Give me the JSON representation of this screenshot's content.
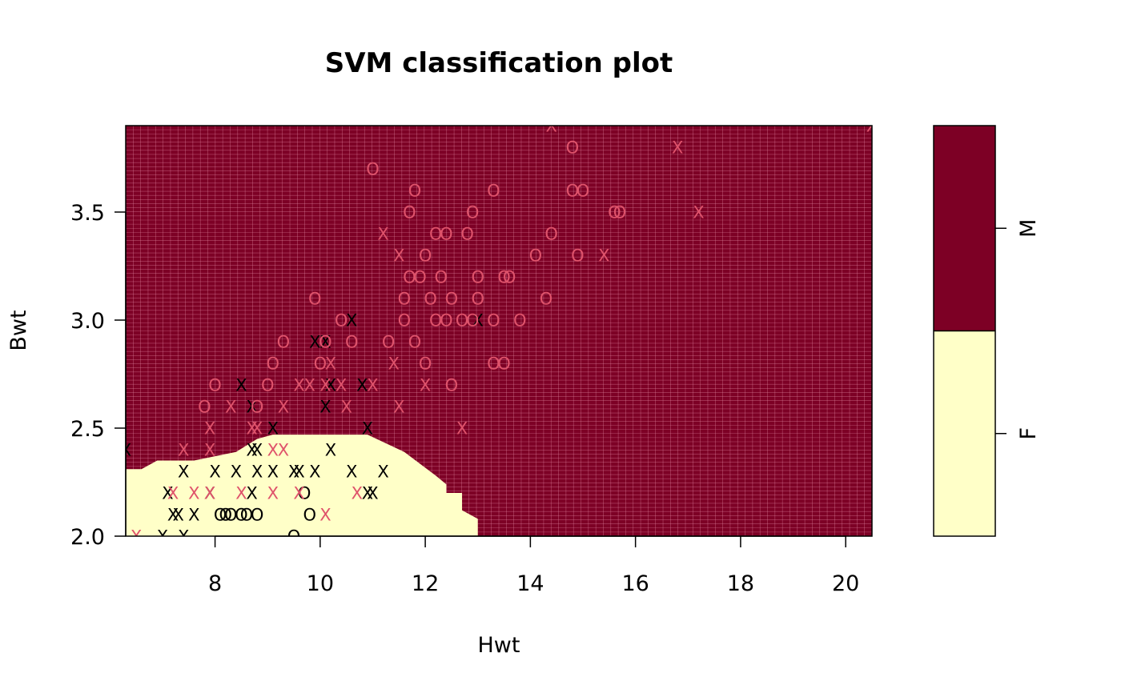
{
  "chart_data": {
    "type": "scatter",
    "title": "SVM classification plot",
    "xlabel": "Hwt",
    "ylabel": "Bwt",
    "xlim": [
      6.3,
      20.5
    ],
    "ylim": [
      2.0,
      3.9
    ],
    "xticks": [
      8,
      10,
      12,
      14,
      16,
      18,
      20
    ],
    "yticks": [
      2.0,
      2.5,
      3.0,
      3.5
    ],
    "xtick_labels": [
      "8",
      "10",
      "12",
      "14",
      "16",
      "18",
      "20"
    ],
    "ytick_labels": [
      "2.0",
      "2.5",
      "3.0",
      "3.5"
    ],
    "grid": true,
    "legend": {
      "position": "right",
      "type": "color-key",
      "classes": [
        {
          "label": "F",
          "color": "#FFFFC8"
        },
        {
          "label": "M",
          "color": "#7D0025"
        }
      ],
      "split": 0.5
    },
    "region_colors": {
      "F": "#FFFFC8",
      "M": "#7D0025",
      "grid": "#E48DA5"
    },
    "point_colors": {
      "F": "#000000",
      "M": "#DF536B"
    },
    "markers": {
      "support_vector": "X",
      "other": "O"
    },
    "decision_region_F": [
      [
        6.3,
        2.0
      ],
      [
        6.3,
        2.31
      ],
      [
        6.6,
        2.31
      ],
      [
        6.9,
        2.35
      ],
      [
        7.6,
        2.35
      ],
      [
        8.4,
        2.39
      ],
      [
        8.8,
        2.45
      ],
      [
        9.1,
        2.47
      ],
      [
        10.9,
        2.47
      ],
      [
        11.6,
        2.39
      ],
      [
        12.2,
        2.28
      ],
      [
        12.4,
        2.24
      ],
      [
        12.4,
        2.2
      ],
      [
        12.7,
        2.2
      ],
      [
        12.7,
        2.12
      ],
      [
        13.0,
        2.08
      ],
      [
        13.0,
        2.0
      ]
    ],
    "series": [
      {
        "name": "F",
        "marker": "X",
        "points": [
          [
            6.3,
            2.4
          ],
          [
            7.0,
            2.0
          ],
          [
            7.4,
            2.0
          ],
          [
            7.1,
            2.2
          ],
          [
            7.2,
            2.1
          ],
          [
            7.3,
            2.1
          ],
          [
            7.4,
            2.3
          ],
          [
            7.6,
            2.1
          ],
          [
            7.9,
            2.2
          ],
          [
            8.0,
            2.3
          ],
          [
            8.4,
            2.3
          ],
          [
            8.7,
            2.2
          ],
          [
            8.5,
            2.7
          ],
          [
            8.7,
            2.6
          ],
          [
            8.7,
            2.4
          ],
          [
            8.8,
            2.4
          ],
          [
            8.8,
            2.3
          ],
          [
            9.1,
            2.3
          ],
          [
            9.1,
            2.5
          ],
          [
            9.5,
            2.3
          ],
          [
            9.6,
            2.3
          ],
          [
            9.9,
            2.3
          ],
          [
            9.9,
            2.9
          ],
          [
            10.1,
            2.9
          ],
          [
            10.1,
            2.6
          ],
          [
            10.2,
            2.7
          ],
          [
            10.2,
            2.4
          ],
          [
            10.6,
            3.0
          ],
          [
            10.8,
            2.7
          ],
          [
            10.6,
            2.3
          ],
          [
            10.9,
            2.5
          ],
          [
            10.9,
            2.2
          ],
          [
            11.0,
            2.2
          ],
          [
            11.2,
            2.3
          ],
          [
            13.0,
            3.0
          ]
        ]
      },
      {
        "name": "F",
        "marker": "O",
        "points": [
          [
            8.1,
            2.1
          ],
          [
            8.2,
            2.1
          ],
          [
            8.3,
            2.1
          ],
          [
            8.5,
            2.1
          ],
          [
            8.6,
            2.1
          ],
          [
            8.8,
            2.1
          ],
          [
            9.8,
            2.1
          ],
          [
            9.7,
            2.2
          ],
          [
            9.5,
            2.0
          ]
        ]
      },
      {
        "name": "M",
        "marker": "X",
        "points": [
          [
            6.5,
            2.0
          ],
          [
            7.2,
            2.2
          ],
          [
            7.4,
            2.4
          ],
          [
            7.6,
            2.2
          ],
          [
            7.9,
            2.2
          ],
          [
            7.9,
            2.4
          ],
          [
            7.9,
            2.5
          ],
          [
            8.3,
            2.6
          ],
          [
            8.5,
            2.2
          ],
          [
            8.7,
            2.5
          ],
          [
            8.8,
            2.5
          ],
          [
            9.1,
            2.2
          ],
          [
            9.1,
            2.4
          ],
          [
            9.3,
            2.4
          ],
          [
            9.3,
            2.6
          ],
          [
            9.6,
            2.2
          ],
          [
            9.6,
            2.7
          ],
          [
            9.8,
            2.7
          ],
          [
            10.1,
            2.1
          ],
          [
            10.1,
            2.7
          ],
          [
            10.2,
            2.8
          ],
          [
            10.4,
            2.7
          ],
          [
            10.5,
            2.6
          ],
          [
            10.7,
            2.2
          ],
          [
            11.0,
            2.7
          ],
          [
            11.2,
            3.4
          ],
          [
            11.4,
            2.8
          ],
          [
            11.5,
            3.3
          ],
          [
            11.5,
            2.6
          ],
          [
            12.0,
            2.7
          ],
          [
            12.7,
            2.5
          ],
          [
            14.4,
            3.9
          ],
          [
            15.4,
            3.3
          ],
          [
            16.8,
            3.8
          ],
          [
            17.2,
            3.5
          ],
          [
            20.5,
            3.9
          ]
        ]
      },
      {
        "name": "M",
        "marker": "O",
        "points": [
          [
            7.8,
            2.6
          ],
          [
            8.0,
            2.7
          ],
          [
            8.8,
            2.6
          ],
          [
            9.0,
            2.7
          ],
          [
            9.1,
            2.8
          ],
          [
            9.3,
            2.9
          ],
          [
            9.9,
            3.1
          ],
          [
            10.0,
            2.8
          ],
          [
            10.1,
            2.9
          ],
          [
            10.4,
            3.0
          ],
          [
            10.6,
            2.9
          ],
          [
            11.0,
            3.7
          ],
          [
            11.3,
            2.9
          ],
          [
            11.6,
            3.1
          ],
          [
            11.6,
            3.0
          ],
          [
            11.7,
            3.2
          ],
          [
            11.7,
            3.5
          ],
          [
            11.8,
            3.6
          ],
          [
            11.8,
            2.9
          ],
          [
            11.9,
            3.2
          ],
          [
            12.0,
            3.3
          ],
          [
            12.0,
            2.8
          ],
          [
            12.1,
            3.1
          ],
          [
            12.2,
            3.0
          ],
          [
            12.2,
            3.4
          ],
          [
            12.3,
            3.2
          ],
          [
            12.4,
            3.4
          ],
          [
            12.4,
            3.0
          ],
          [
            12.5,
            3.1
          ],
          [
            12.5,
            2.7
          ],
          [
            12.7,
            3.0
          ],
          [
            12.8,
            3.4
          ],
          [
            12.9,
            3.5
          ],
          [
            13.0,
            3.2
          ],
          [
            13.0,
            3.1
          ],
          [
            12.9,
            3.0
          ],
          [
            13.3,
            3.6
          ],
          [
            13.3,
            3.0
          ],
          [
            13.3,
            2.8
          ],
          [
            13.5,
            2.8
          ],
          [
            13.5,
            3.2
          ],
          [
            13.6,
            3.2
          ],
          [
            13.8,
            3.0
          ],
          [
            14.1,
            3.3
          ],
          [
            14.3,
            3.1
          ],
          [
            14.4,
            3.4
          ],
          [
            14.8,
            3.8
          ],
          [
            14.8,
            3.6
          ],
          [
            15.0,
            3.6
          ],
          [
            14.9,
            3.3
          ],
          [
            15.6,
            3.5
          ],
          [
            15.7,
            3.5
          ]
        ]
      }
    ]
  }
}
